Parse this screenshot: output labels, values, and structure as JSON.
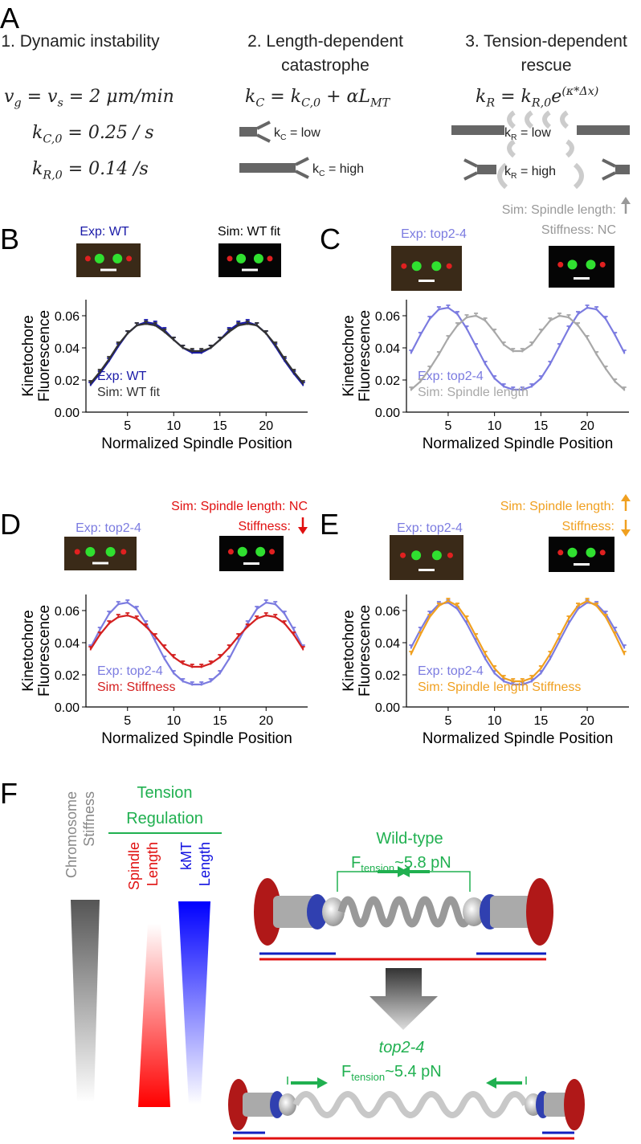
{
  "panel_labels": [
    "A",
    "B",
    "C",
    "D",
    "E",
    "F"
  ],
  "panel_a": {
    "headings": [
      [
        "1. Dynamic instability"
      ],
      [
        "2. Length-dependent",
        "catastrophe"
      ],
      [
        "3. Tension-dependent",
        "rescue"
      ]
    ],
    "equations": [
      [
        {
          "t": "v"
        },
        {
          "sub": "g"
        },
        {
          "t": " = v"
        },
        {
          "sub": "s"
        },
        {
          "t": " = 2 μm/min"
        }
      ],
      [
        {
          "t": "k"
        },
        {
          "sub": "C,0"
        },
        {
          "t": " = 0.25 / s"
        }
      ],
      [
        {
          "t": "k"
        },
        {
          "sub": "R,0"
        },
        {
          "t": " = 0.14 /s"
        }
      ],
      [
        {
          "t": "k"
        },
        {
          "sub": "C"
        },
        {
          "t": " = k"
        },
        {
          "sub": "C,0"
        },
        {
          "t": " + αL"
        },
        {
          "sub": "MT"
        }
      ],
      [
        {
          "t": "k"
        },
        {
          "sub": "R"
        },
        {
          "t": " = k"
        },
        {
          "sub": "R,0"
        },
        {
          "t": "e"
        },
        {
          "sup": "(κ*Δx)"
        }
      ]
    ],
    "rate_labels": [
      [
        {
          "t": "k"
        },
        {
          "sub": "C"
        },
        {
          "t": " = low"
        }
      ],
      [
        {
          "t": "k"
        },
        {
          "sub": "C"
        },
        {
          "t": " = high"
        }
      ],
      [
        {
          "t": "k"
        },
        {
          "sub": "R"
        },
        {
          "t": " = low"
        }
      ],
      [
        {
          "t": "k"
        },
        {
          "sub": "R"
        },
        {
          "t": " = high"
        }
      ]
    ]
  },
  "chart_data": [
    {
      "type": "line",
      "x": [
        1,
        2,
        3,
        4,
        5,
        6,
        7,
        8,
        9,
        10,
        11,
        12,
        13,
        14,
        15,
        16,
        17,
        18,
        19,
        20,
        21,
        22,
        23,
        24
      ],
      "xlim": [
        0.5,
        24.5
      ],
      "xticks": [
        5,
        10,
        15,
        20
      ],
      "ylim": [
        0,
        0.07
      ],
      "yticks": [
        {
          "value": 0,
          "label": "0.00"
        },
        {
          "value": 0.02,
          "label": "0.02"
        },
        {
          "value": 0.04,
          "label": "0.04"
        },
        {
          "value": 0.06,
          "label": "0.06"
        }
      ],
      "x_label": "Normalized Spindle Position",
      "y_label": [
        "Kinetochore",
        "Fluorescence"
      ],
      "legend": "lower left",
      "series": [
        {
          "name": "Exp: WT",
          "color": "#1a1aa8",
          "values": [
            0.017,
            0.024,
            0.032,
            0.041,
            0.049,
            0.054,
            0.056,
            0.055,
            0.051,
            0.045,
            0.04,
            0.037,
            0.037,
            0.04,
            0.045,
            0.051,
            0.055,
            0.056,
            0.054,
            0.049,
            0.041,
            0.032,
            0.024,
            0.017
          ]
        },
        {
          "name": "Sim: WT fit",
          "color": "#333333",
          "values": [
            0.018,
            0.025,
            0.033,
            0.042,
            0.049,
            0.054,
            0.055,
            0.054,
            0.05,
            0.045,
            0.04,
            0.038,
            0.038,
            0.04,
            0.045,
            0.05,
            0.054,
            0.055,
            0.054,
            0.049,
            0.042,
            0.033,
            0.025,
            0.018
          ]
        }
      ],
      "annotations": [
        {
          "text": "Exp: WT",
          "color": "#1a1aa8"
        },
        {
          "text": "Sim: WT fit",
          "color": "#000000"
        }
      ]
    },
    {
      "type": "line",
      "x": [
        1,
        2,
        3,
        4,
        5,
        6,
        7,
        8,
        9,
        10,
        11,
        12,
        13,
        14,
        15,
        16,
        17,
        18,
        19,
        20,
        21,
        22,
        23,
        24
      ],
      "xlim": [
        0.5,
        24.5
      ],
      "xticks": [
        5,
        10,
        15,
        20
      ],
      "ylim": [
        0,
        0.07
      ],
      "yticks": [
        {
          "value": 0,
          "label": "0.00"
        },
        {
          "value": 0.02,
          "label": "0.02"
        },
        {
          "value": 0.04,
          "label": "0.04"
        },
        {
          "value": 0.06,
          "label": "0.06"
        }
      ],
      "x_label": "Normalized Spindle Position",
      "y_label": [
        "Kinetochore",
        "Fluorescence"
      ],
      "legend": "lower left",
      "series": [
        {
          "name": "Exp: top2-4",
          "color": "#7b7be0",
          "values": [
            0.037,
            0.048,
            0.058,
            0.064,
            0.065,
            0.061,
            0.052,
            0.041,
            0.03,
            0.021,
            0.016,
            0.014,
            0.014,
            0.016,
            0.021,
            0.03,
            0.041,
            0.052,
            0.061,
            0.065,
            0.064,
            0.058,
            0.048,
            0.037
          ]
        },
        {
          "name": "Sim: Spindle length",
          "color": "#a8a8a8",
          "values": [
            0.014,
            0.019,
            0.027,
            0.036,
            0.046,
            0.054,
            0.059,
            0.06,
            0.057,
            0.05,
            0.042,
            0.038,
            0.038,
            0.042,
            0.05,
            0.057,
            0.06,
            0.059,
            0.054,
            0.046,
            0.036,
            0.027,
            0.019,
            0.014
          ]
        }
      ],
      "annotations": [
        {
          "text": "Sim: Spindle length:",
          "color": "#999999"
        },
        {
          "text": "Stiffness: NC",
          "color": "#999999"
        },
        {
          "text": "Exp: top2-4",
          "color": "#7b7be0"
        }
      ]
    },
    {
      "type": "line",
      "x": [
        1,
        2,
        3,
        4,
        5,
        6,
        7,
        8,
        9,
        10,
        11,
        12,
        13,
        14,
        15,
        16,
        17,
        18,
        19,
        20,
        21,
        22,
        23,
        24
      ],
      "xlim": [
        0.5,
        24.5
      ],
      "xticks": [
        5,
        10,
        15,
        20
      ],
      "ylim": [
        0,
        0.07
      ],
      "yticks": [
        {
          "value": 0,
          "label": "0.00"
        },
        {
          "value": 0.02,
          "label": "0.02"
        },
        {
          "value": 0.04,
          "label": "0.04"
        },
        {
          "value": 0.06,
          "label": "0.06"
        }
      ],
      "x_label": "Normalized Spindle Position",
      "y_label": [
        "Kinetochore",
        "Fluorescence"
      ],
      "legend": "lower left",
      "series": [
        {
          "name": "Exp: top2-4",
          "color": "#7b7be0",
          "values": [
            0.037,
            0.048,
            0.058,
            0.064,
            0.065,
            0.061,
            0.052,
            0.041,
            0.03,
            0.021,
            0.016,
            0.014,
            0.014,
            0.016,
            0.021,
            0.03,
            0.041,
            0.052,
            0.061,
            0.065,
            0.064,
            0.058,
            0.048,
            0.037
          ]
        },
        {
          "name": "Sim: Stiffness",
          "color": "#d42020",
          "values": [
            0.036,
            0.045,
            0.052,
            0.056,
            0.057,
            0.055,
            0.05,
            0.044,
            0.037,
            0.031,
            0.027,
            0.025,
            0.025,
            0.027,
            0.031,
            0.037,
            0.044,
            0.05,
            0.055,
            0.057,
            0.056,
            0.052,
            0.045,
            0.036
          ]
        }
      ],
      "annotations": [
        {
          "text": "Sim: Spindle length: NC",
          "color": "#e01010"
        },
        {
          "text": "Stiffness:",
          "color": "#e01010"
        },
        {
          "text": "Exp: top2-4",
          "color": "#7b7be0"
        }
      ]
    },
    {
      "type": "line",
      "x": [
        1,
        2,
        3,
        4,
        5,
        6,
        7,
        8,
        9,
        10,
        11,
        12,
        13,
        14,
        15,
        16,
        17,
        18,
        19,
        20,
        21,
        22,
        23,
        24
      ],
      "xlim": [
        0.5,
        24.5
      ],
      "xticks": [
        5,
        10,
        15,
        20
      ],
      "ylim": [
        0,
        0.07
      ],
      "yticks": [
        {
          "value": 0,
          "label": "0.00"
        },
        {
          "value": 0.02,
          "label": "0.02"
        },
        {
          "value": 0.04,
          "label": "0.04"
        },
        {
          "value": 0.06,
          "label": "0.06"
        }
      ],
      "x_label": "Normalized Spindle Position",
      "y_label": [
        "Kinetochore",
        "Fluorescence"
      ],
      "legend": "lower left",
      "series": [
        {
          "name": "Exp: top2-4",
          "color": "#7b7be0",
          "values": [
            0.037,
            0.048,
            0.058,
            0.064,
            0.065,
            0.061,
            0.052,
            0.041,
            0.03,
            0.021,
            0.016,
            0.014,
            0.014,
            0.016,
            0.021,
            0.03,
            0.041,
            0.052,
            0.061,
            0.065,
            0.064,
            0.058,
            0.048,
            0.037
          ]
        },
        {
          "name": "Sim: Spindle length Stiffness",
          "color": "#f0a020",
          "values": [
            0.033,
            0.045,
            0.056,
            0.063,
            0.066,
            0.063,
            0.055,
            0.044,
            0.033,
            0.024,
            0.018,
            0.016,
            0.016,
            0.018,
            0.024,
            0.033,
            0.044,
            0.055,
            0.063,
            0.066,
            0.063,
            0.056,
            0.045,
            0.033
          ]
        }
      ],
      "annotations": [
        {
          "text": "Sim: Spindle length:",
          "color": "#f0a020"
        },
        {
          "text": "Stiffness:",
          "color": "#f0a020"
        },
        {
          "text": "Exp: top2-4",
          "color": "#7b7be0"
        }
      ]
    }
  ],
  "panel_f": {
    "stiffness_label": [
      "Chromosome",
      "Stiffness"
    ],
    "regulation_title": [
      "Tension",
      "Regulation"
    ],
    "spindle_label": [
      "Spindle",
      "Length"
    ],
    "kmt_label": [
      "kMT",
      "Length"
    ],
    "wild_type": {
      "title": "Wild-type",
      "force": [
        {
          "t": "F"
        },
        {
          "sub": "tension"
        },
        {
          "t": "~5.8 pN"
        }
      ]
    },
    "mutant": {
      "title": "top2-4",
      "force": [
        {
          "t": "F"
        },
        {
          "sub": "tension"
        },
        {
          "t": "~5.4 pN"
        }
      ]
    }
  }
}
